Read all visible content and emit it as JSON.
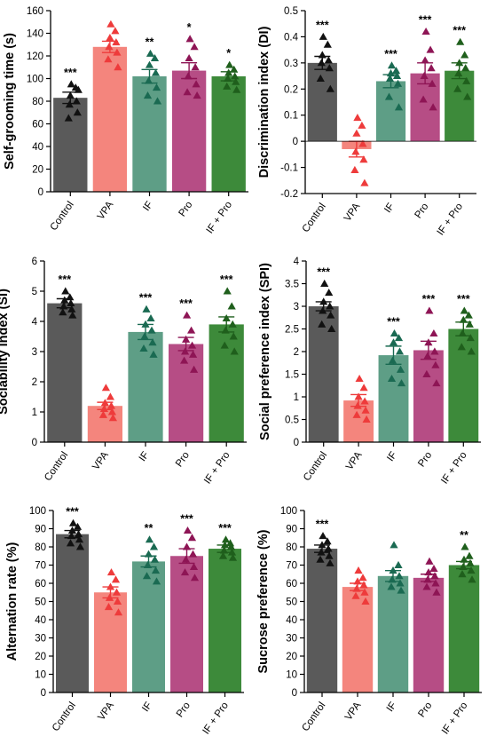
{
  "colors": {
    "Control": "#5a5a5a",
    "VPA": "#f4857d",
    "IF": "#5e9e86",
    "Pro": "#b64d85",
    "IF + Pro": "#3d8a3a"
  },
  "marker_colors": {
    "Control": "#111111",
    "VPA": "#ee3b3b",
    "IF": "#1a6a52",
    "Pro": "#8e1555",
    "IF + Pro": "#1f5f1c"
  },
  "chart_data": [
    {
      "type": "bar",
      "ylabel": "Self-grooming time (s)",
      "categories": [
        "Control",
        "VPA",
        "IF",
        "Pro",
        "IF + Pro"
      ],
      "values": [
        83,
        128,
        102,
        107,
        102
      ],
      "errors": [
        5,
        5,
        6,
        7,
        4
      ],
      "ylim": [
        0,
        160
      ],
      "yticks": [
        0,
        20,
        40,
        60,
        80,
        100,
        120,
        140,
        160
      ],
      "significance": [
        "***",
        "",
        "**",
        "*",
        "*"
      ],
      "points": [
        [
          95,
          92,
          85,
          80,
          77,
          70,
          65,
          90
        ],
        [
          148,
          142,
          136,
          132,
          128,
          123,
          117,
          110
        ],
        [
          122,
          118,
          112,
          105,
          98,
          92,
          85,
          80
        ],
        [
          135,
          128,
          118,
          110,
          102,
          95,
          88,
          85
        ],
        [
          112,
          108,
          105,
          102,
          100,
          97,
          93,
          90
        ]
      ]
    },
    {
      "type": "bar",
      "ylabel": "Discrimination index (DI)",
      "categories": [
        "Control",
        "VPA",
        "IF",
        "Pro",
        "IF + Pro"
      ],
      "values": [
        0.3,
        -0.03,
        0.23,
        0.26,
        0.27
      ],
      "errors": [
        0.025,
        0.03,
        0.025,
        0.04,
        0.03
      ],
      "ylim": [
        -0.2,
        0.5
      ],
      "yticks": [
        -0.2,
        -0.1,
        0.0,
        0.1,
        0.2,
        0.3,
        0.4,
        0.5
      ],
      "significance": [
        "***",
        "",
        "***",
        "***",
        "***"
      ],
      "points": [
        [
          0.4,
          0.37,
          0.33,
          0.31,
          0.3,
          0.28,
          0.24,
          0.2
        ],
        [
          0.09,
          0.06,
          0.03,
          -0.01,
          -0.04,
          -0.07,
          -0.11,
          -0.16
        ],
        [
          0.29,
          0.27,
          0.26,
          0.25,
          0.24,
          0.22,
          0.17,
          0.13
        ],
        [
          0.42,
          0.35,
          0.31,
          0.28,
          0.25,
          0.22,
          0.16,
          0.13
        ],
        [
          0.38,
          0.33,
          0.3,
          0.28,
          0.26,
          0.23,
          0.2,
          0.17
        ]
      ]
    },
    {
      "type": "bar",
      "ylabel": "Sociability index (SI)",
      "categories": [
        "Control",
        "VPA",
        "IF",
        "Pro",
        "IF + Pro"
      ],
      "values": [
        4.6,
        1.2,
        3.65,
        3.25,
        3.9
      ],
      "errors": [
        0.15,
        0.12,
        0.25,
        0.22,
        0.25
      ],
      "ylim": [
        0,
        6
      ],
      "yticks": [
        0,
        1,
        2,
        3,
        4,
        5,
        6
      ],
      "significance": [
        "***",
        "",
        "***",
        "***",
        "***"
      ],
      "points": [
        [
          5.0,
          4.8,
          4.7,
          4.6,
          4.5,
          4.4,
          4.3,
          4.2
        ],
        [
          1.8,
          1.5,
          1.3,
          1.2,
          1.1,
          1.0,
          0.9,
          0.8
        ],
        [
          4.4,
          4.1,
          3.9,
          3.7,
          3.5,
          3.3,
          3.1,
          2.9
        ],
        [
          4.2,
          3.7,
          3.4,
          3.2,
          3.0,
          2.9,
          2.7,
          2.4
        ],
        [
          5.0,
          4.5,
          4.1,
          3.9,
          3.7,
          3.5,
          3.2,
          3.0
        ]
      ]
    },
    {
      "type": "bar",
      "ylabel": "Social preference index (SPI)",
      "categories": [
        "Control",
        "VPA",
        "IF",
        "Pro",
        "IF + Pro"
      ],
      "values": [
        3.0,
        0.92,
        1.92,
        2.03,
        2.5
      ],
      "errors": [
        0.1,
        0.13,
        0.2,
        0.2,
        0.15
      ],
      "ylim": [
        0,
        4.0
      ],
      "yticks": [
        0,
        0.5,
        1.0,
        1.5,
        2.0,
        2.5,
        3.0,
        3.5,
        4.0
      ],
      "significance": [
        "***",
        "",
        "***",
        "***",
        "***"
      ],
      "points": [
        [
          3.5,
          3.3,
          3.1,
          3.0,
          2.9,
          2.8,
          2.6,
          2.5
        ],
        [
          1.4,
          1.2,
          1.0,
          0.9,
          0.8,
          0.7,
          0.6,
          0.5
        ],
        [
          2.4,
          2.3,
          2.2,
          2.0,
          1.8,
          1.6,
          1.4,
          1.3
        ],
        [
          2.9,
          2.4,
          2.2,
          2.0,
          1.9,
          1.7,
          1.5,
          1.3
        ],
        [
          2.9,
          2.8,
          2.7,
          2.6,
          2.4,
          2.3,
          2.1,
          2.0
        ]
      ]
    },
    {
      "type": "bar",
      "ylabel": "Alternation rate (%)",
      "categories": [
        "Control",
        "VPA",
        "IF",
        "Pro",
        "IF + Pro"
      ],
      "values": [
        87,
        55,
        72,
        75,
        79
      ],
      "errors": [
        2,
        3,
        3,
        4,
        2
      ],
      "ylim": [
        0,
        100
      ],
      "yticks": [
        0,
        10,
        20,
        30,
        40,
        50,
        60,
        70,
        80,
        90,
        100
      ],
      "significance": [
        "***",
        "",
        "**",
        "***",
        "***"
      ],
      "points": [
        [
          93,
          91,
          89,
          87,
          86,
          84,
          82,
          80
        ],
        [
          66,
          62,
          58,
          55,
          52,
          50,
          47,
          44
        ],
        [
          84,
          80,
          76,
          73,
          70,
          67,
          64,
          61
        ],
        [
          89,
          85,
          80,
          76,
          73,
          69,
          66,
          63
        ],
        [
          84,
          82,
          81,
          80,
          78,
          77,
          75,
          74
        ]
      ]
    },
    {
      "type": "bar",
      "ylabel": "Sucrose preference (%)",
      "categories": [
        "Control",
        "VPA",
        "IF",
        "Pro",
        "IF + Pro"
      ],
      "values": [
        79,
        58,
        64,
        63,
        70
      ],
      "errors": [
        2,
        2,
        3,
        2,
        2
      ],
      "ylim": [
        0,
        100
      ],
      "yticks": [
        0,
        10,
        20,
        30,
        40,
        50,
        60,
        70,
        80,
        90,
        100
      ],
      "significance": [
        "***",
        "",
        "",
        "",
        "**"
      ],
      "points": [
        [
          86,
          83,
          81,
          79,
          77,
          75,
          73,
          71
        ],
        [
          67,
          63,
          61,
          59,
          57,
          55,
          53,
          50
        ],
        [
          81,
          70,
          67,
          64,
          62,
          60,
          58,
          56
        ],
        [
          72,
          68,
          66,
          64,
          62,
          60,
          58,
          55
        ],
        [
          80,
          75,
          73,
          71,
          69,
          67,
          65,
          62
        ]
      ]
    }
  ]
}
